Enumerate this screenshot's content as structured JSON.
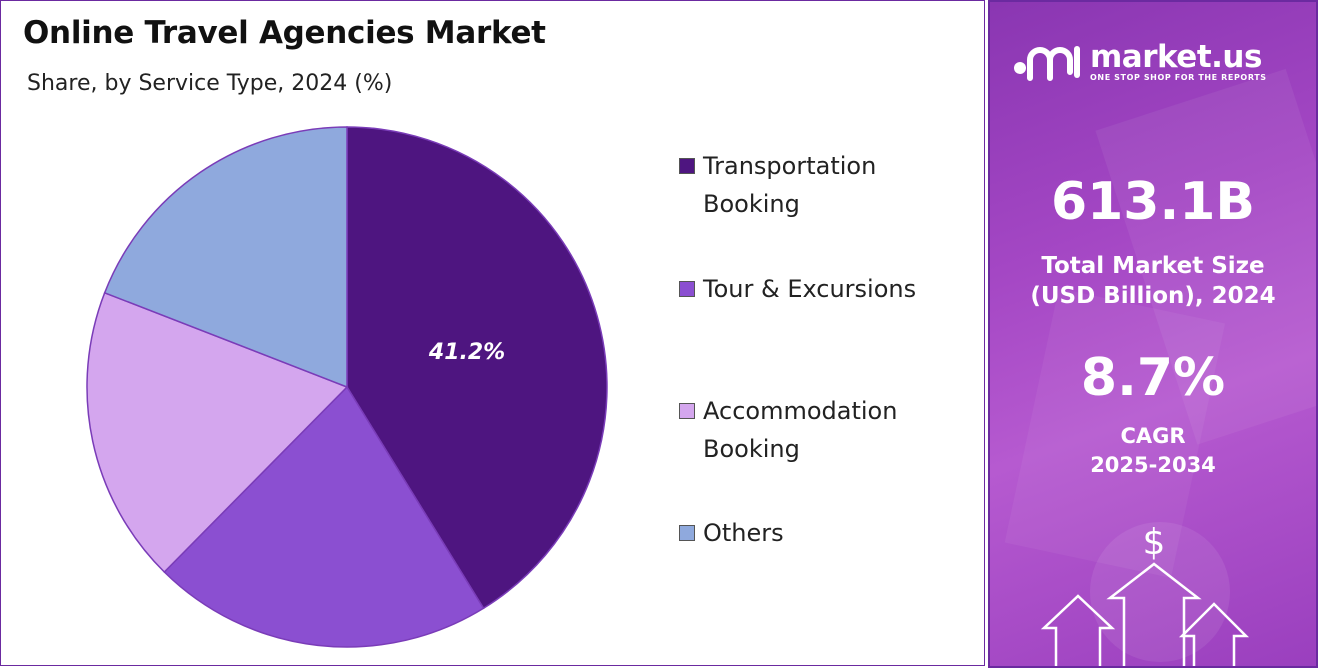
{
  "header": {
    "title": "Online Travel Agencies Market",
    "subtitle": "Share, by Service Type, 2024 (%)"
  },
  "chart_data": {
    "type": "pie",
    "title": "Online Travel Agencies Market",
    "subtitle": "Share, by Service Type, 2024 (%)",
    "slices": [
      {
        "label": "Transportation Booking",
        "value": 41.2,
        "color": "#4e1580",
        "label_text": "41.2%"
      },
      {
        "label": "Tour & Excursions",
        "value": 21.2,
        "color": "#8b4fd1",
        "label_text": ""
      },
      {
        "label": "Accommodation Booking",
        "value": 18.5,
        "color": "#d4a6ee",
        "label_text": ""
      },
      {
        "label": "Others",
        "value": 19.1,
        "color": "#8fa9dd",
        "label_text": ""
      }
    ],
    "legend_position": "right"
  },
  "legend": {
    "items": [
      {
        "line1": "Transportation",
        "line2": "Booking",
        "color": "#4e1580"
      },
      {
        "line1": "Tour & Excursions",
        "line2": "",
        "color": "#8b4fd1"
      },
      {
        "line1": "Accommodation",
        "line2": "Booking",
        "color": "#d4a6ee"
      },
      {
        "line1": "Others",
        "line2": "",
        "color": "#8fa9dd"
      }
    ]
  },
  "sidebar": {
    "brand": "market.us",
    "tagline": "ONE STOP SHOP FOR THE REPORTS",
    "market_size_value": "613.1B",
    "market_size_label_1": "Total Market Size",
    "market_size_label_2": "(USD Billion), 2024",
    "cagr_value": "8.7%",
    "cagr_label_1": "CAGR",
    "cagr_label_2": "2025-2034",
    "icon": "dollar-arrows-icon"
  }
}
